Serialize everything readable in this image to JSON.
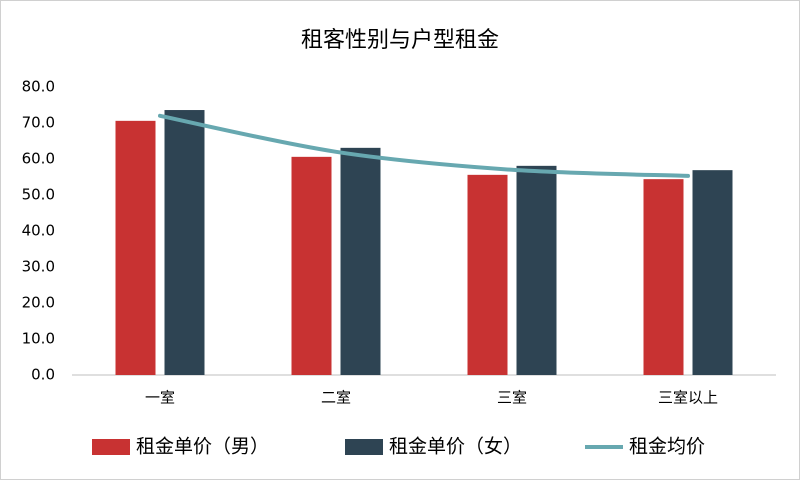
{
  "chart_data": {
    "type": "bar-line",
    "title": "租客性别与户型租金",
    "categories": [
      "一室",
      "二室",
      "三室",
      "三室以上"
    ],
    "series": [
      {
        "name": "租金单价（男）",
        "color": "#c83232",
        "type": "bar",
        "values": [
          70.6,
          60.6,
          55.6,
          54.4
        ]
      },
      {
        "name": "租金单价（女）",
        "color": "#2e4453",
        "type": "bar",
        "values": [
          73.6,
          63.1,
          58.1,
          56.9
        ]
      },
      {
        "name": "租金均价",
        "color": "#67a8b0",
        "type": "line",
        "values": [
          72.0,
          62.0,
          57.0,
          55.3
        ]
      }
    ],
    "ylim": [
      0,
      80
    ],
    "yticks": [
      {
        "value": 0,
        "label": "0.0"
      },
      {
        "value": 10,
        "label": "10.0"
      },
      {
        "value": 20,
        "label": "20.0"
      },
      {
        "value": 30,
        "label": "30.0"
      },
      {
        "value": 40,
        "label": "40.0"
      },
      {
        "value": 50,
        "label": "50.0"
      },
      {
        "value": 60,
        "label": "60.0"
      },
      {
        "value": 70,
        "label": "70.0"
      },
      {
        "value": 80,
        "label": "80.0"
      }
    ],
    "grid": false
  }
}
